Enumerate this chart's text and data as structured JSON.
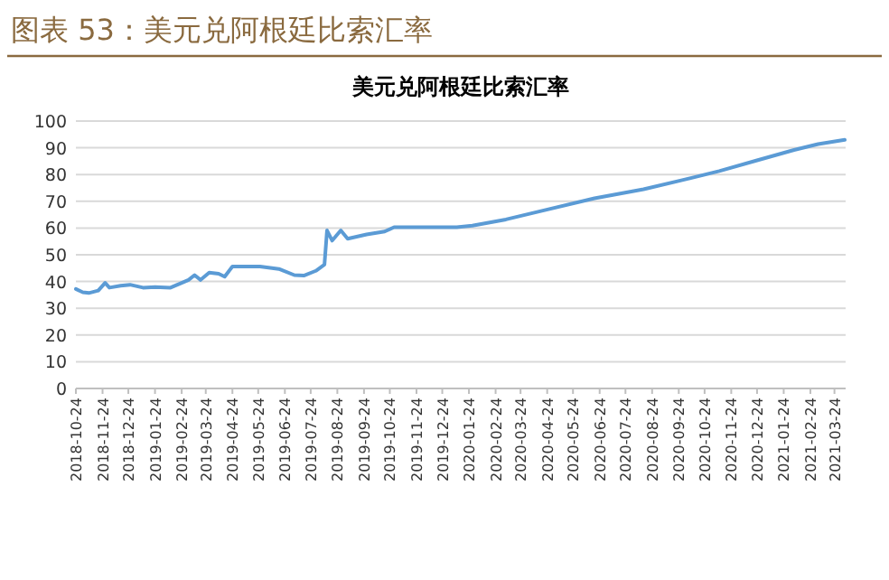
{
  "chart_data": {
    "type": "line",
    "title": "图表 53：美元兑阿根廷比索汇率",
    "subtitle": "美元兑阿根廷比索汇率",
    "x": [
      "2018-10-24",
      "2018-11-01",
      "2018-11-08",
      "2018-11-19",
      "2018-11-27",
      "2018-12-02",
      "2018-12-15",
      "2018-12-26",
      "2019-01-10",
      "2019-01-24",
      "2019-02-11",
      "2019-02-24",
      "2019-03-04",
      "2019-03-11",
      "2019-03-18",
      "2019-03-28",
      "2019-04-08",
      "2019-04-15",
      "2019-04-24",
      "2019-05-26",
      "2019-06-17",
      "2019-07-05",
      "2019-07-16",
      "2019-07-30",
      "2019-08-09",
      "2019-08-12",
      "2019-08-18",
      "2019-08-28",
      "2019-09-05",
      "2019-09-27",
      "2019-10-18",
      "2019-10-29",
      "2019-11-24",
      "2020-01-10",
      "2020-01-28",
      "2020-03-07",
      "2020-04-20",
      "2020-06-18",
      "2020-08-14",
      "2020-09-28",
      "2020-11-10",
      "2020-12-24",
      "2021-02-05",
      "2021-03-05",
      "2021-04-05"
    ],
    "values": [
      37.2,
      36,
      35.7,
      36.6,
      39.5,
      37.7,
      38.4,
      38.8,
      37.7,
      37.9,
      37.7,
      39.5,
      40.6,
      42.4,
      40.6,
      43.3,
      42.9,
      41.8,
      45.6,
      45.6,
      44.7,
      42.4,
      42.2,
      44,
      46.3,
      59.1,
      55.3,
      59.1,
      56,
      57.6,
      58.7,
      60.3,
      60.3,
      60.3,
      60.9,
      63.2,
      66.6,
      71.1,
      74.5,
      77.9,
      81.3,
      85.3,
      89.2,
      91.4,
      93
    ],
    "color": "#5b9bd5",
    "xlim": [
      "2018-10-24",
      "2021-04-06"
    ],
    "xticks": [
      "2018-10-24",
      "2018-11-24",
      "2018-12-24",
      "2019-01-24",
      "2019-02-24",
      "2019-03-24",
      "2019-04-24",
      "2019-05-24",
      "2019-06-24",
      "2019-07-24",
      "2019-08-24",
      "2019-09-24",
      "2019-10-24",
      "2019-11-24",
      "2019-12-24",
      "2020-01-24",
      "2020-02-24",
      "2020-03-24",
      "2020-04-24",
      "2020-05-24",
      "2020-06-24",
      "2020-07-24",
      "2020-08-24",
      "2020-09-24",
      "2020-10-24",
      "2020-11-24",
      "2020-12-24",
      "2021-01-24",
      "2021-02-24",
      "2021-03-24"
    ],
    "ylim": [
      0,
      100
    ],
    "yticks": [
      0,
      10,
      20,
      30,
      40,
      50,
      60,
      70,
      80,
      90,
      100
    ],
    "grid": "y"
  }
}
